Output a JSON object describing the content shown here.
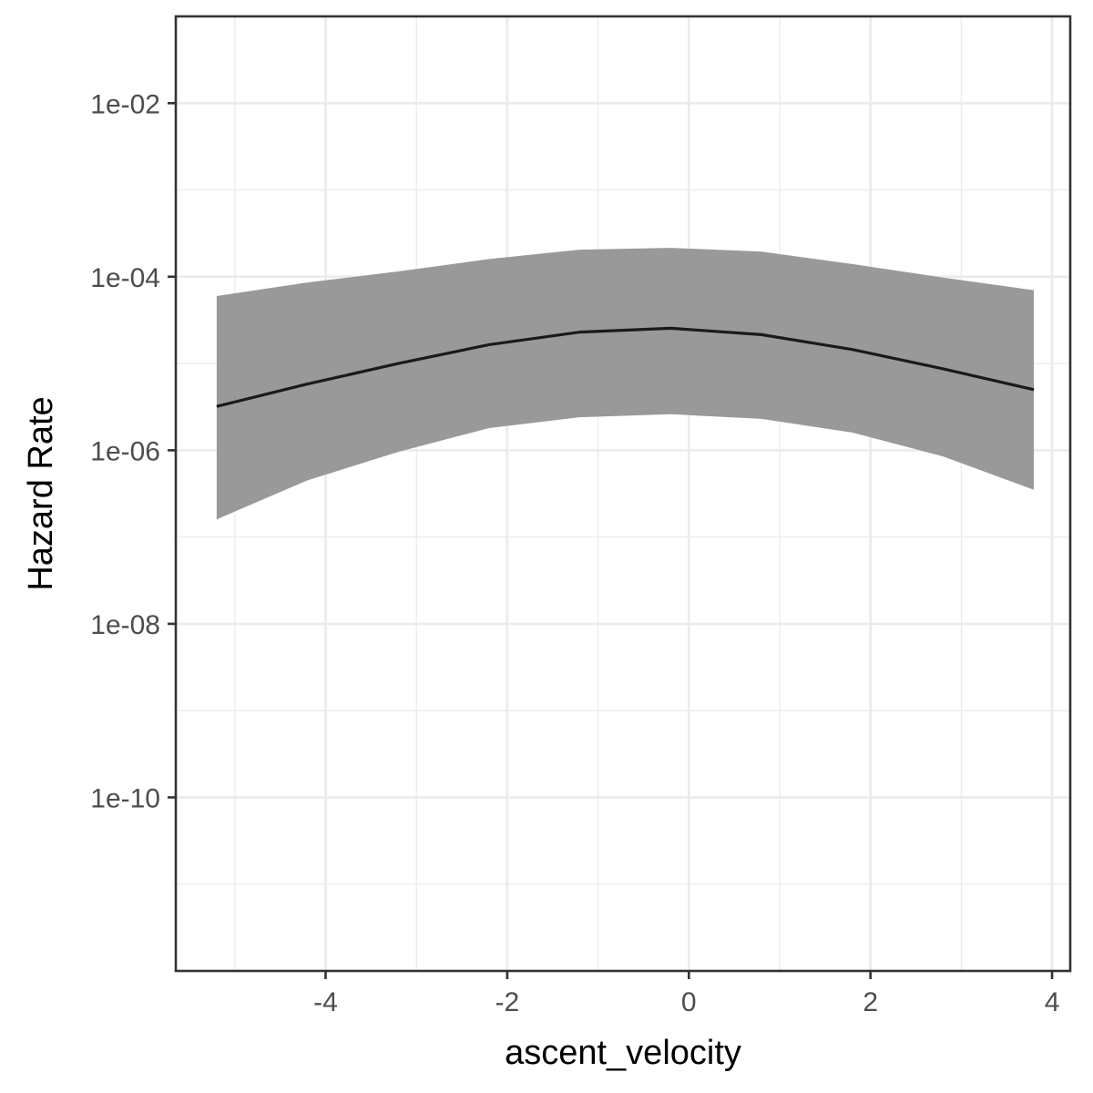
{
  "chart_data": {
    "type": "line",
    "xlabel": "ascent_velocity",
    "ylabel": "Hazard Rate",
    "y_scale": "log10",
    "xlim": [
      -5.65,
      4.2
    ],
    "ylim": [
      1e-12,
      0.1
    ],
    "x_ticks": [
      -4,
      -2,
      0,
      2,
      4
    ],
    "x_tick_labels": [
      "-4",
      "-2",
      "0",
      "2",
      "4"
    ],
    "y_ticks": [
      1e-10,
      1e-08,
      1e-06,
      0.0001,
      0.01
    ],
    "y_tick_labels": [
      "1e-10",
      "1e-08",
      "1e-06",
      "1e-04",
      "1e-02"
    ],
    "grid": true,
    "legend": "none",
    "colors": {
      "line": "#1a1a1a",
      "ribbon": "#999999",
      "grid": "#ebebeb",
      "border": "#333333"
    },
    "series": [
      {
        "x": [
          -5.2,
          -4.2,
          -3.2,
          -2.2,
          -1.2,
          -0.2,
          0.8,
          1.8,
          2.8,
          3.8
        ],
        "y": [
          3.2e-06,
          5.8e-06,
          1e-05,
          1.65e-05,
          2.3e-05,
          2.55e-05,
          2.15e-05,
          1.45e-05,
          8.7e-06,
          5e-06
        ],
        "ymin": [
          1.6e-07,
          4.5e-07,
          9.6e-07,
          1.8e-06,
          2.4e-06,
          2.6e-06,
          2.3e-06,
          1.6e-06,
          8.5e-07,
          3.5e-07
        ],
        "ymax": [
          6e-05,
          8.6e-05,
          0.000115,
          0.00016,
          0.000205,
          0.000215,
          0.000195,
          0.00014,
          9.8e-05,
          7e-05
        ]
      }
    ]
  }
}
